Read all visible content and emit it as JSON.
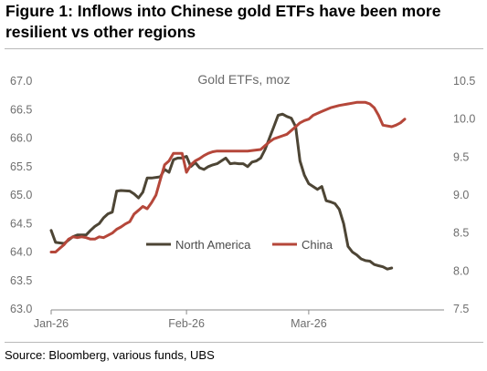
{
  "figure": {
    "title_line1": "Figure 1: Inflows into Chinese gold ETFs have been more",
    "title_line2": "resilient vs other regions",
    "source": "Source: Bloomberg, various funds, UBS"
  },
  "colors": {
    "north_america": "#4d4535",
    "china": "#b5473a",
    "axis_text": "#6e6e6e",
    "rule": "#b9b9b9"
  },
  "chart_data": {
    "type": "line",
    "title": "Gold ETFs, moz",
    "x_tick_labels": [
      "Jan-26",
      "Feb-26",
      "Mar-26"
    ],
    "x_tick_days": [
      0,
      31,
      59
    ],
    "xlim": [
      0,
      90
    ],
    "y_left": {
      "ylim": [
        63.0,
        67.0
      ],
      "ticks": [
        "63.0",
        "63.5",
        "64.0",
        "64.5",
        "65.0",
        "65.5",
        "66.0",
        "66.5",
        "67.0"
      ]
    },
    "y_right": {
      "ylim": [
        7.5,
        10.5
      ],
      "ticks": [
        "7.5",
        "8.0",
        "8.5",
        "9.0",
        "9.5",
        "10.0",
        "10.5"
      ]
    },
    "grid": false,
    "legend_position": "lower-center",
    "series": [
      {
        "name": "North America",
        "axis": "left",
        "color": "#4d4535",
        "points": [
          [
            0,
            64.38
          ],
          [
            1,
            64.17
          ],
          [
            3,
            64.15
          ],
          [
            5,
            64.27
          ],
          [
            6,
            64.3
          ],
          [
            8,
            64.3
          ],
          [
            9,
            64.38
          ],
          [
            10,
            64.45
          ],
          [
            11,
            64.5
          ],
          [
            12,
            64.6
          ],
          [
            13,
            64.67
          ],
          [
            14,
            64.7
          ],
          [
            15,
            65.07
          ],
          [
            16,
            65.08
          ],
          [
            18,
            65.07
          ],
          [
            19,
            65.02
          ],
          [
            20,
            64.95
          ],
          [
            21,
            65.05
          ],
          [
            22,
            65.3
          ],
          [
            23,
            65.3
          ],
          [
            25,
            65.32
          ],
          [
            26,
            65.45
          ],
          [
            27,
            65.4
          ],
          [
            28,
            65.62
          ],
          [
            29,
            65.65
          ],
          [
            30,
            65.65
          ],
          [
            31,
            65.68
          ],
          [
            32,
            65.5
          ],
          [
            33,
            65.57
          ],
          [
            34,
            65.48
          ],
          [
            35,
            65.45
          ],
          [
            36,
            65.5
          ],
          [
            37,
            65.53
          ],
          [
            38,
            65.55
          ],
          [
            39,
            65.6
          ],
          [
            40,
            65.65
          ],
          [
            41,
            65.55
          ],
          [
            42,
            65.56
          ],
          [
            43,
            65.55
          ],
          [
            44,
            65.55
          ],
          [
            45,
            65.5
          ],
          [
            46,
            65.58
          ],
          [
            47,
            65.6
          ],
          [
            48,
            65.65
          ],
          [
            49,
            65.8
          ],
          [
            50,
            66.0
          ],
          [
            51,
            66.2
          ],
          [
            52,
            66.4
          ],
          [
            53,
            66.42
          ],
          [
            54,
            66.38
          ],
          [
            55,
            66.35
          ],
          [
            56,
            66.2
          ],
          [
            57,
            65.6
          ],
          [
            58,
            65.35
          ],
          [
            59,
            65.2
          ],
          [
            60,
            65.15
          ],
          [
            61,
            65.1
          ],
          [
            62,
            65.15
          ],
          [
            63,
            64.9
          ],
          [
            64,
            64.88
          ],
          [
            65,
            64.85
          ],
          [
            66,
            64.75
          ],
          [
            67,
            64.5
          ],
          [
            68,
            64.1
          ],
          [
            69,
            64.0
          ],
          [
            70,
            63.95
          ],
          [
            71,
            63.88
          ],
          [
            72,
            63.85
          ],
          [
            73,
            63.84
          ],
          [
            74,
            63.78
          ],
          [
            75,
            63.76
          ],
          [
            76,
            63.74
          ],
          [
            77,
            63.7
          ],
          [
            78,
            63.72
          ]
        ]
      },
      {
        "name": "China",
        "axis": "right",
        "color": "#b5473a",
        "points": [
          [
            0,
            8.25
          ],
          [
            1,
            8.25
          ],
          [
            2,
            8.3
          ],
          [
            3,
            8.35
          ],
          [
            4,
            8.42
          ],
          [
            5,
            8.45
          ],
          [
            6,
            8.44
          ],
          [
            7,
            8.45
          ],
          [
            8,
            8.44
          ],
          [
            9,
            8.42
          ],
          [
            10,
            8.42
          ],
          [
            11,
            8.45
          ],
          [
            12,
            8.44
          ],
          [
            13,
            8.47
          ],
          [
            14,
            8.5
          ],
          [
            15,
            8.55
          ],
          [
            16,
            8.58
          ],
          [
            17,
            8.62
          ],
          [
            18,
            8.65
          ],
          [
            19,
            8.75
          ],
          [
            20,
            8.8
          ],
          [
            21,
            8.85
          ],
          [
            22,
            8.82
          ],
          [
            23,
            8.9
          ],
          [
            24,
            9.0
          ],
          [
            25,
            9.2
          ],
          [
            26,
            9.4
          ],
          [
            27,
            9.45
          ],
          [
            28,
            9.55
          ],
          [
            29,
            9.55
          ],
          [
            30,
            9.55
          ],
          [
            31,
            9.3
          ],
          [
            32,
            9.4
          ],
          [
            33,
            9.45
          ],
          [
            34,
            9.48
          ],
          [
            35,
            9.52
          ],
          [
            36,
            9.55
          ],
          [
            37,
            9.57
          ],
          [
            38,
            9.58
          ],
          [
            45,
            9.58
          ],
          [
            48,
            9.6
          ],
          [
            49,
            9.65
          ],
          [
            50,
            9.7
          ],
          [
            51,
            9.74
          ],
          [
            52,
            9.76
          ],
          [
            53,
            9.78
          ],
          [
            54,
            9.8
          ],
          [
            55,
            9.85
          ],
          [
            56,
            9.9
          ],
          [
            57,
            9.95
          ],
          [
            58,
            9.98
          ],
          [
            59,
            10.0
          ],
          [
            60,
            10.05
          ],
          [
            62,
            10.1
          ],
          [
            64,
            10.15
          ],
          [
            66,
            10.18
          ],
          [
            68,
            10.2
          ],
          [
            70,
            10.22
          ],
          [
            72,
            10.22
          ],
          [
            73,
            10.2
          ],
          [
            74,
            10.15
          ],
          [
            75,
            10.05
          ],
          [
            76,
            9.92
          ],
          [
            78,
            9.9
          ],
          [
            79,
            9.92
          ],
          [
            80,
            9.95
          ],
          [
            81,
            10.0
          ]
        ]
      }
    ]
  }
}
